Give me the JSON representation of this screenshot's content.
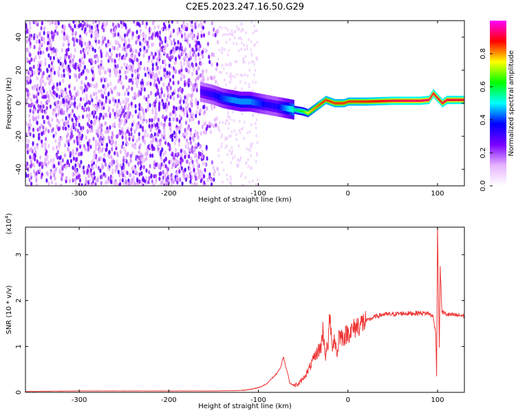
{
  "title": "C2E5.2023.247.16.50.G29",
  "chart_data": [
    {
      "type": "heatmap",
      "xlabel": "Height of straight line (km)",
      "ylabel": "Frequency (Hz)",
      "xlim": [
        -360,
        130
      ],
      "ylim": [
        -50,
        50
      ],
      "xticks": [
        -300,
        -200,
        -100,
        0,
        100
      ],
      "yticks": [
        -40,
        -20,
        0,
        20,
        40
      ],
      "colorbar": {
        "label": "Normalized spectral amplitude",
        "ticks": [
          0.0,
          0.2,
          0.4,
          0.6,
          0.8
        ],
        "range": [
          0,
          1
        ],
        "colormap": [
          "#ffffff",
          "#e6b3ff",
          "#7a00ff",
          "#0000ff",
          "#00ffff",
          "#00ff00",
          "#ffff00",
          "#ff0000",
          "#ff00ff"
        ]
      },
      "ridge": {
        "x": [
          -165,
          -150,
          -140,
          -130,
          -120,
          -110,
          -100,
          -90,
          -80,
          -70,
          -60,
          -50,
          -45,
          -40,
          -35,
          -30,
          -25,
          -20,
          -15,
          -10,
          -5,
          0,
          20,
          50,
          80,
          90,
          95,
          100,
          105,
          110,
          130
        ],
        "y": [
          7,
          5,
          3,
          2,
          1,
          1,
          0,
          -1,
          -2,
          -3,
          -4,
          -5,
          -6,
          -4,
          -2,
          0,
          2,
          1,
          0,
          0,
          0,
          1,
          1,
          1.5,
          1.5,
          2,
          6,
          3,
          0,
          2,
          2
        ],
        "amplitude": [
          0.3,
          0.35,
          0.4,
          0.45,
          0.45,
          0.45,
          0.4,
          0.35,
          0.35,
          0.45,
          0.55,
          0.65,
          0.75,
          0.8,
          0.82,
          0.85,
          0.85,
          0.85,
          0.85,
          0.85,
          0.85,
          0.85,
          0.86,
          0.9,
          0.92,
          0.92,
          0.9,
          0.9,
          0.9,
          0.9,
          0.9
        ]
      }
    },
    {
      "type": "line",
      "xlabel": "Height of straight line (km)",
      "ylabel": "SNR (10 * v/v)",
      "yunit": "(x10^4)",
      "xlim": [
        -360,
        130
      ],
      "ylim": [
        0,
        3.6
      ],
      "xticks": [
        -300,
        -200,
        -100,
        0,
        100
      ],
      "yticks": [
        0,
        1,
        2,
        3
      ],
      "color": "#ee3333",
      "series": [
        {
          "x": [
            -360,
            -300,
            -250,
            -200,
            -150,
            -120,
            -110,
            -100,
            -95,
            -90,
            -85,
            -80,
            -75,
            -72,
            -70,
            -67,
            -65,
            -60,
            -55,
            -50,
            -45,
            -40,
            -35,
            -30,
            -28,
            -25,
            -22,
            -20,
            -18,
            -15,
            -12,
            -10,
            -5,
            0,
            5,
            10,
            15,
            20,
            25,
            30,
            40,
            50,
            60,
            70,
            80,
            90,
            95,
            98,
            99,
            100,
            101,
            102,
            103,
            105,
            110,
            120,
            130
          ],
          "y": [
            0.02,
            0.03,
            0.03,
            0.03,
            0.03,
            0.04,
            0.06,
            0.1,
            0.14,
            0.2,
            0.3,
            0.4,
            0.55,
            0.78,
            0.6,
            0.4,
            0.2,
            0.15,
            0.18,
            0.3,
            0.45,
            0.65,
            0.85,
            1.0,
            1.35,
            0.8,
            1.1,
            1.7,
            1.0,
            1.2,
            0.8,
            1.25,
            1.2,
            1.3,
            1.35,
            1.45,
            1.5,
            1.55,
            1.6,
            1.65,
            1.7,
            1.7,
            1.72,
            1.72,
            1.73,
            1.72,
            1.65,
            1.3,
            0.35,
            3.6,
            2.2,
            1.0,
            2.7,
            1.75,
            1.7,
            1.68,
            1.67
          ]
        }
      ]
    }
  ]
}
